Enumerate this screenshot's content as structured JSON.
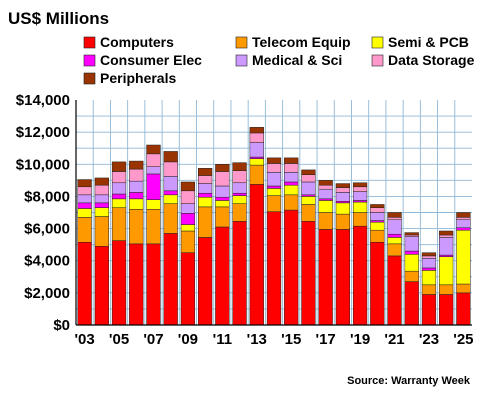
{
  "chart_data": {
    "type": "bar",
    "stacked": true,
    "title": "US$ Millions",
    "source": "Source: Warranty Week",
    "categories": [
      "2003",
      "2004",
      "2005",
      "2006",
      "2007",
      "2008",
      "2009",
      "2010",
      "2011",
      "2012",
      "2013",
      "2014",
      "2015",
      "2016",
      "2017",
      "2018",
      "2019",
      "2020",
      "2021",
      "2022",
      "2023",
      "2024",
      "2025"
    ],
    "xtick_labels": [
      "'03",
      "'05",
      "'07",
      "'09",
      "'11",
      "'13",
      "'15",
      "'17",
      "'19",
      "'21",
      "'23",
      "'25"
    ],
    "ytick_labels": [
      "$0",
      "$2,000",
      "$4,000",
      "$6,000",
      "$8,000",
      "$10,000",
      "$12,000",
      "$14,000"
    ],
    "ylim": [
      0,
      14000
    ],
    "grid": true,
    "legend_position": "top",
    "series": [
      {
        "name": "Computers",
        "color": "#ff0000",
        "values": [
          5150,
          4900,
          5250,
          5050,
          5050,
          5700,
          4500,
          5450,
          6100,
          6450,
          8750,
          7050,
          7150,
          6450,
          5950,
          5950,
          6150,
          5150,
          4300,
          2700,
          1900,
          1900,
          2000
        ]
      },
      {
        "name": "Telecom Equip",
        "color": "#ff9900",
        "values": [
          1550,
          1850,
          2050,
          2150,
          2150,
          1850,
          1350,
          1900,
          1250,
          1100,
          1200,
          1000,
          950,
          1050,
          1050,
          950,
          850,
          750,
          750,
          650,
          600,
          600,
          550
        ]
      },
      {
        "name": "Semi & PCB",
        "color": "#ffff00",
        "values": [
          550,
          550,
          550,
          650,
          600,
          550,
          400,
          600,
          400,
          500,
          400,
          450,
          600,
          500,
          750,
          700,
          650,
          500,
          400,
          1050,
          900,
          1750,
          3350
        ]
      },
      {
        "name": "Consumer Elec",
        "color": "#ff00ff",
        "values": [
          350,
          300,
          300,
          400,
          1600,
          250,
          700,
          250,
          200,
          150,
          100,
          150,
          200,
          100,
          100,
          100,
          100,
          100,
          200,
          200,
          150,
          100,
          150
        ]
      },
      {
        "name": "Medical & Sci",
        "color": "#cc99ff",
        "values": [
          500,
          500,
          700,
          700,
          450,
          900,
          600,
          600,
          700,
          650,
          900,
          850,
          600,
          800,
          600,
          550,
          550,
          500,
          900,
          900,
          600,
          1100,
          500
        ]
      },
      {
        "name": "Data Storage",
        "color": "#ff99cc",
        "values": [
          500,
          600,
          700,
          750,
          800,
          900,
          800,
          500,
          900,
          750,
          600,
          550,
          550,
          450,
          250,
          300,
          300,
          300,
          150,
          100,
          150,
          150,
          150
        ]
      },
      {
        "name": "Peripherals",
        "color": "#993300",
        "values": [
          450,
          450,
          600,
          500,
          550,
          650,
          550,
          450,
          450,
          500,
          350,
          350,
          350,
          300,
          300,
          250,
          250,
          200,
          300,
          150,
          200,
          250,
          300
        ]
      }
    ]
  }
}
